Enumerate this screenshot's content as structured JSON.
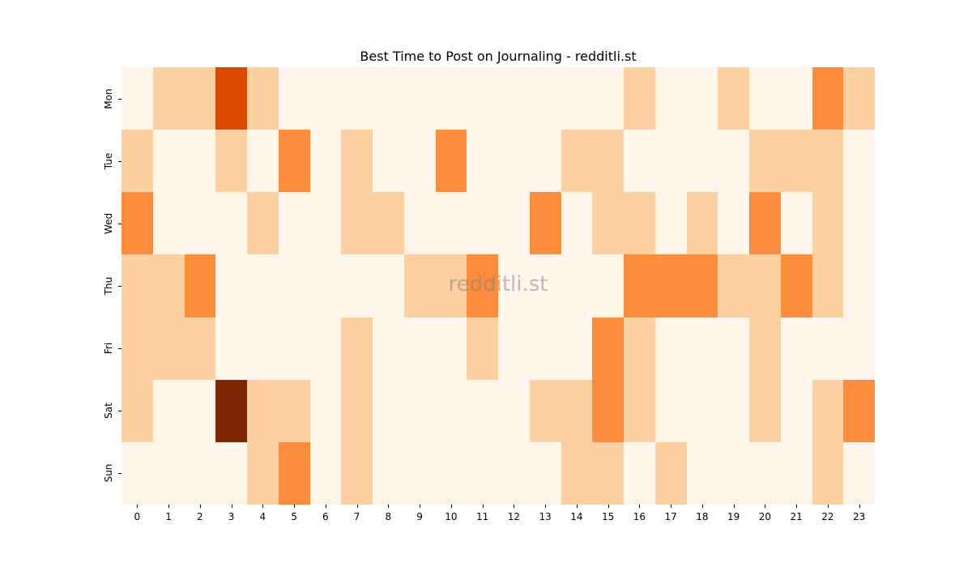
{
  "chart": {
    "title": "Best Time to Post on Journaling - redditli.st",
    "watermark": "redditli.st"
  },
  "colors": {
    "levels": [
      "#fff5eb",
      "#fdd0a2",
      "#fd8d3c",
      "#d94801",
      "#7f2704"
    ]
  },
  "chart_data": {
    "type": "heatmap",
    "title": "Best Time to Post on Journaling - redditli.st",
    "xlabel": "",
    "ylabel": "",
    "x": [
      "0",
      "1",
      "2",
      "3",
      "4",
      "5",
      "6",
      "7",
      "8",
      "9",
      "10",
      "11",
      "12",
      "13",
      "14",
      "15",
      "16",
      "17",
      "18",
      "19",
      "20",
      "21",
      "22",
      "23"
    ],
    "y": [
      "Mon",
      "Tue",
      "Wed",
      "Thu",
      "Fri",
      "Sat",
      "Sun"
    ],
    "colormap": "Oranges",
    "grid": false,
    "legend": "none",
    "values": [
      [
        0,
        1,
        1,
        3,
        1,
        0,
        0,
        0,
        0,
        0,
        0,
        0,
        0,
        0,
        0,
        0,
        1,
        0,
        0,
        1,
        0,
        0,
        2,
        1
      ],
      [
        1,
        0,
        0,
        1,
        0,
        2,
        0,
        1,
        0,
        0,
        2,
        0,
        0,
        0,
        1,
        1,
        0,
        0,
        0,
        0,
        1,
        1,
        1,
        0
      ],
      [
        2,
        0,
        0,
        0,
        1,
        0,
        0,
        1,
        1,
        0,
        0,
        0,
        0,
        2,
        0,
        1,
        1,
        0,
        1,
        0,
        2,
        0,
        1,
        0
      ],
      [
        1,
        1,
        2,
        0,
        0,
        0,
        0,
        0,
        0,
        1,
        1,
        2,
        0,
        0,
        0,
        0,
        2,
        2,
        2,
        1,
        1,
        2,
        1,
        0
      ],
      [
        1,
        1,
        1,
        0,
        0,
        0,
        0,
        1,
        0,
        0,
        0,
        1,
        0,
        0,
        0,
        2,
        1,
        0,
        0,
        0,
        1,
        0,
        0,
        0
      ],
      [
        1,
        0,
        0,
        4,
        1,
        1,
        0,
        1,
        0,
        0,
        0,
        0,
        0,
        1,
        1,
        2,
        1,
        0,
        0,
        0,
        1,
        0,
        1,
        2
      ],
      [
        0,
        0,
        0,
        0,
        1,
        2,
        0,
        1,
        0,
        0,
        0,
        0,
        0,
        0,
        1,
        1,
        0,
        1,
        0,
        0,
        0,
        0,
        1,
        0
      ]
    ],
    "value_note": "relative intensity levels 0-4 estimated from color shades"
  }
}
